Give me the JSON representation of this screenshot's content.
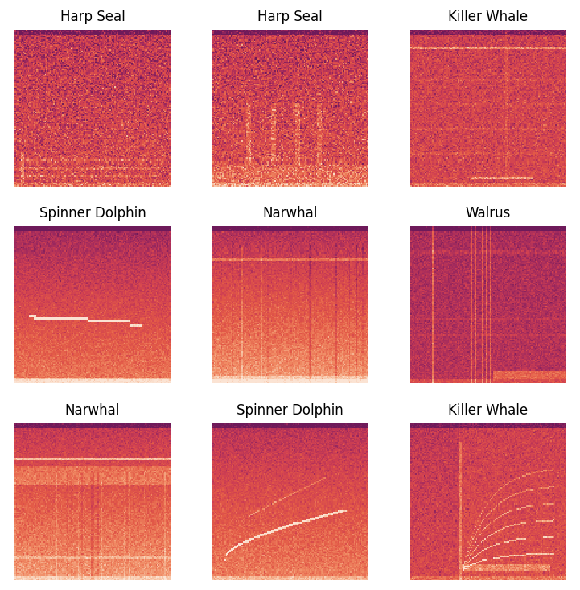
{
  "chart_data": [
    {
      "type": "spectrogram",
      "title": "Harp Seal",
      "tick_labels": false
    },
    {
      "type": "spectrogram",
      "title": "Harp Seal",
      "tick_labels": false
    },
    {
      "type": "spectrogram",
      "title": "Killer Whale",
      "tick_labels": false
    },
    {
      "type": "spectrogram",
      "title": "Spinner Dolphin",
      "tick_labels": false
    },
    {
      "type": "spectrogram",
      "title": "Narwhal",
      "tick_labels": false
    },
    {
      "type": "spectrogram",
      "title": "Walrus",
      "tick_labels": false
    },
    {
      "type": "spectrogram",
      "title": "Narwhal",
      "tick_labels": false
    },
    {
      "type": "spectrogram",
      "title": "Spinner Dolphin",
      "tick_labels": false
    },
    {
      "type": "spectrogram",
      "title": "Killer Whale",
      "tick_labels": false
    }
  ]
}
